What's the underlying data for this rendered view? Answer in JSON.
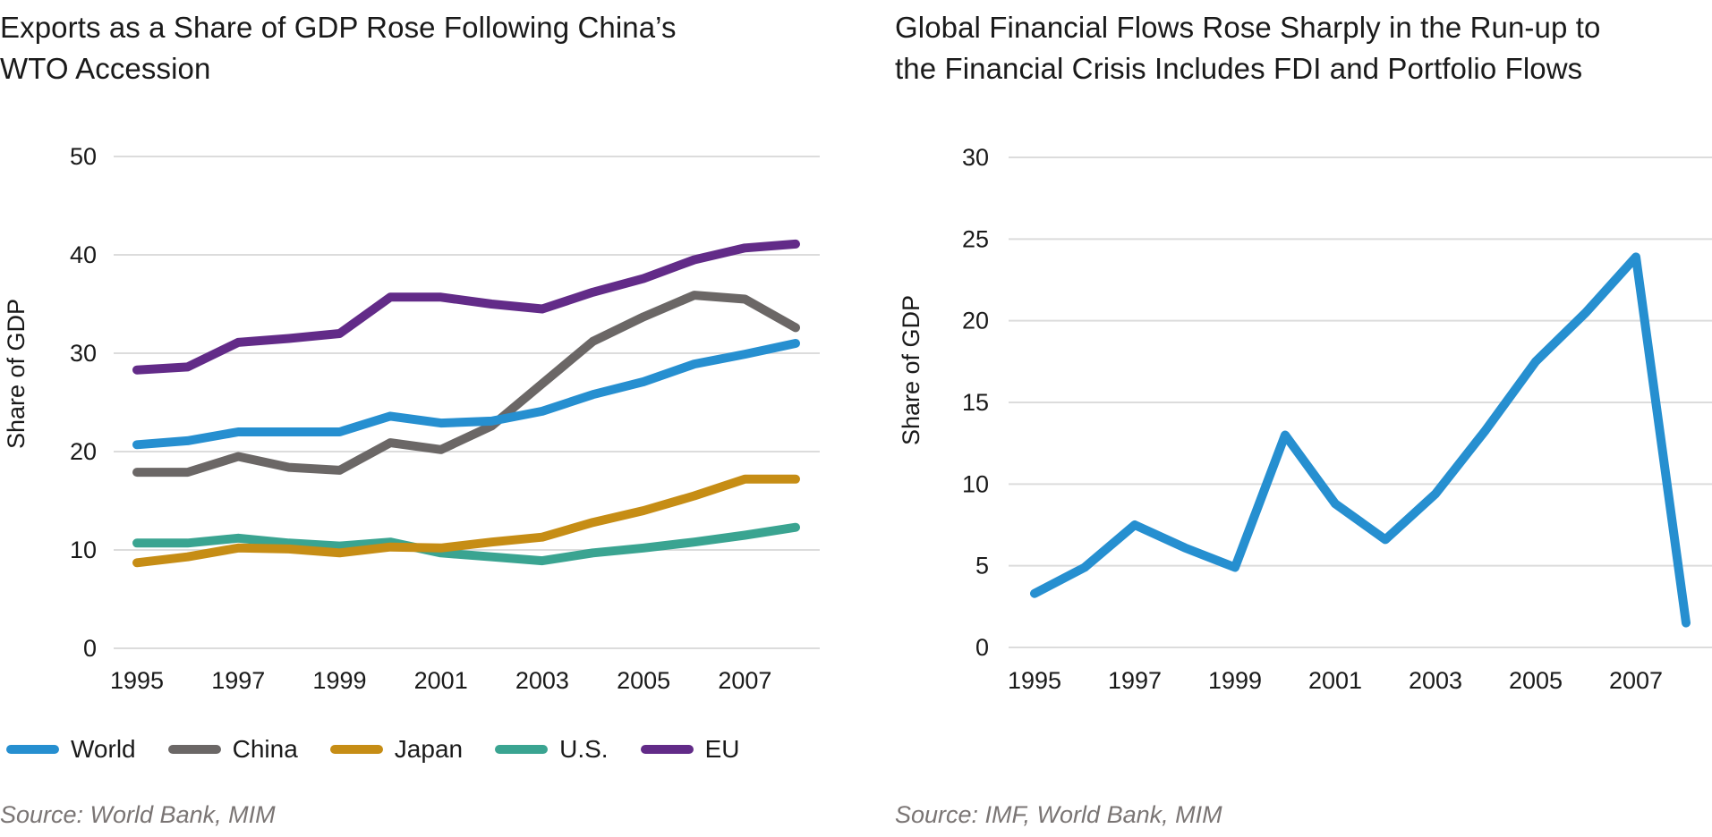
{
  "chart_data": [
    {
      "type": "line",
      "title": "Exports as a Share of GDP Rose Following China’s WTO Accession",
      "title_lines": [
        "Exports as a Share of GDP Rose Following China’s",
        "WTO Accession"
      ],
      "xlabel": "",
      "ylabel": "Share of GDP",
      "x": [
        1995,
        1996,
        1997,
        1998,
        1999,
        2000,
        2001,
        2002,
        2003,
        2004,
        2005,
        2006,
        2007,
        2008
      ],
      "xticks": [
        "1995",
        "1997",
        "1999",
        "2001",
        "2003",
        "2005",
        "2007"
      ],
      "yticks": [
        "0",
        "10",
        "20",
        "30",
        "40",
        "50"
      ],
      "ylim": [
        0,
        50
      ],
      "xlim": [
        1995,
        2008
      ],
      "grid": "horizontal",
      "legend_position": "bottom",
      "series": [
        {
          "name": "World",
          "color": "#268fd0",
          "values": [
            20.7,
            21.1,
            22.0,
            22.0,
            22.0,
            23.6,
            22.9,
            23.1,
            24.1,
            25.8,
            27.1,
            28.9,
            29.9,
            31.0
          ]
        },
        {
          "name": "China",
          "color": "#6b6766",
          "values": [
            17.9,
            17.9,
            19.5,
            18.4,
            18.1,
            20.9,
            20.2,
            22.6,
            26.9,
            31.2,
            33.7,
            35.9,
            35.5,
            32.6
          ]
        },
        {
          "name": "Japan",
          "color": "#c68d15",
          "values": [
            8.7,
            9.3,
            10.2,
            10.1,
            9.7,
            10.3,
            10.2,
            10.8,
            11.3,
            12.8,
            14.0,
            15.5,
            17.2,
            17.2
          ]
        },
        {
          "name": "U.S.",
          "color": "#3aa491",
          "values": [
            10.7,
            10.7,
            11.2,
            10.7,
            10.4,
            10.8,
            9.7,
            9.3,
            8.9,
            9.7,
            10.2,
            10.8,
            11.5,
            12.3
          ]
        },
        {
          "name": "EU",
          "color": "#622b88",
          "values": [
            28.3,
            28.6,
            31.1,
            31.5,
            32.0,
            35.7,
            35.7,
            35.0,
            34.5,
            36.2,
            37.6,
            39.5,
            40.7,
            41.1
          ]
        }
      ],
      "source": "Source: World Bank, MIM"
    },
    {
      "type": "line",
      "title": "Global Financial Flows Rose Sharply in the Run-up to the Financial Crisis Includes FDI and Portfolio Flows",
      "title_lines": [
        "Global Financial Flows Rose Sharply in the Run-up to",
        "the Financial Crisis Includes FDI and Portfolio Flows"
      ],
      "xlabel": "",
      "ylabel": "Share of GDP",
      "x": [
        1995,
        1996,
        1997,
        1998,
        1999,
        2000,
        2001,
        2002,
        2003,
        2004,
        2005,
        2006,
        2007,
        2008
      ],
      "xticks": [
        "1995",
        "1997",
        "1999",
        "2001",
        "2003",
        "2005",
        "2007"
      ],
      "yticks": [
        "0",
        "5",
        "10",
        "15",
        "20",
        "25",
        "30"
      ],
      "ylim": [
        0,
        30
      ],
      "xlim": [
        1995,
        2008
      ],
      "grid": "horizontal",
      "series": [
        {
          "name": "Global financial flows",
          "color": "#268fd0",
          "values": [
            3.3,
            4.9,
            7.5,
            6.1,
            4.9,
            13.0,
            8.8,
            6.6,
            9.4,
            13.3,
            17.5,
            20.5,
            23.9,
            1.5
          ]
        }
      ],
      "source": "Source: IMF, World Bank, MIM"
    }
  ]
}
